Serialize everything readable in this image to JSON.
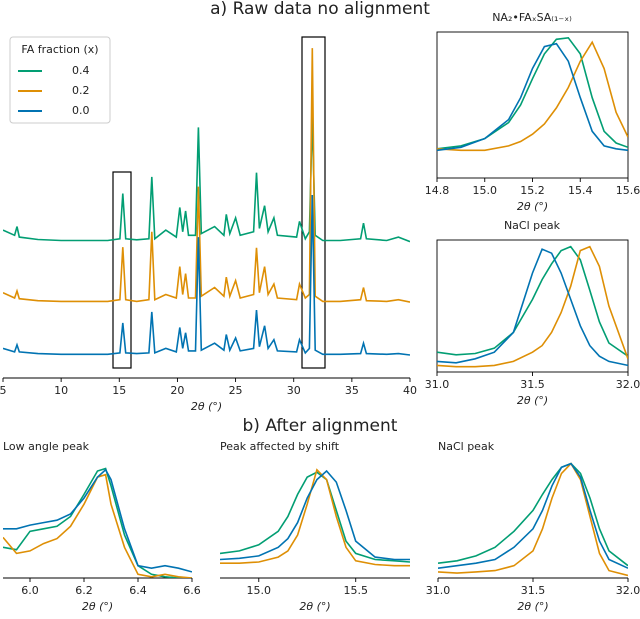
{
  "section_titles": [
    "a) Raw data no alignment",
    "b) After alignment"
  ],
  "chart_data": [
    {
      "type": "line",
      "xlabel": "2θ (°)",
      "frame": false,
      "legend_title": "FA fraction (x)",
      "legend": "upper left",
      "xlim": [
        5,
        40
      ],
      "ylim": [
        0,
        10
      ],
      "xticks": [
        5,
        10,
        15,
        20,
        25,
        30,
        35,
        40
      ],
      "x": [
        5,
        6.0,
        6.2,
        6.4,
        8,
        10,
        14,
        15.05,
        15.3,
        15.55,
        16.5,
        17.55,
        17.8,
        18.05,
        19.0,
        19.9,
        20.2,
        20.45,
        20.7,
        20.95,
        21.55,
        21.8,
        22.05,
        23.2,
        24.0,
        24.2,
        24.5,
        25.0,
        25.4,
        26.55,
        26.8,
        27.05,
        27.5,
        27.8,
        28.3,
        28.6,
        30.25,
        30.5,
        31.0,
        31.35,
        31.6,
        31.85,
        32.5,
        34,
        35.75,
        36.0,
        36.25,
        38,
        39,
        40
      ],
      "series": [
        {
          "name": "0.4",
          "color": "#029e73",
          "values": [
            4.25,
            4.1,
            4.35,
            4.05,
            3.98,
            3.95,
            3.95,
            4.0,
            5.3,
            4.0,
            3.97,
            4.0,
            5.78,
            4.0,
            4.25,
            4.05,
            4.9,
            4.2,
            4.8,
            4.1,
            4.1,
            7.2,
            4.15,
            4.35,
            4.1,
            4.7,
            4.15,
            4.6,
            4.1,
            4.2,
            5.9,
            4.3,
            4.95,
            4.2,
            4.6,
            4.1,
            4.05,
            4.5,
            4.0,
            4.2,
            7.5,
            4.1,
            3.95,
            3.95,
            4.0,
            4.45,
            4.0,
            3.95,
            4.05,
            3.92
          ]
        },
        {
          "name": "0.2",
          "color": "#de8f05",
          "values": [
            2.45,
            2.3,
            2.5,
            2.28,
            2.22,
            2.2,
            2.2,
            2.25,
            3.76,
            2.25,
            2.2,
            2.25,
            4.2,
            2.25,
            2.4,
            2.3,
            3.2,
            2.4,
            3.0,
            2.3,
            2.3,
            5.5,
            2.35,
            2.6,
            2.35,
            2.9,
            2.35,
            2.8,
            2.3,
            2.4,
            3.74,
            2.45,
            3.2,
            2.4,
            2.7,
            2.3,
            2.25,
            2.7,
            2.3,
            2.4,
            9.48,
            2.35,
            2.2,
            2.2,
            2.25,
            2.6,
            2.22,
            2.2,
            2.25,
            2.18
          ]
        },
        {
          "name": "0.0",
          "color": "#0173b2",
          "values": [
            0.85,
            0.75,
            0.95,
            0.75,
            0.7,
            0.68,
            0.68,
            0.72,
            1.58,
            0.72,
            0.7,
            0.72,
            1.9,
            0.72,
            0.85,
            0.75,
            1.45,
            0.85,
            1.3,
            0.78,
            0.78,
            4.05,
            0.8,
            1.0,
            0.8,
            1.25,
            0.8,
            1.15,
            0.78,
            0.85,
            1.95,
            0.9,
            1.5,
            0.85,
            1.1,
            0.78,
            0.75,
            1.1,
            0.72,
            0.85,
            5.26,
            0.8,
            0.68,
            0.68,
            0.7,
            1.0,
            0.7,
            0.68,
            0.7,
            0.66
          ]
        }
      ]
    },
    {
      "type": "line",
      "title": "NA₂•FAₓSA₍₁₋ₓ₎",
      "xlabel": "2θ (°)",
      "frame": true,
      "xlim": [
        14.8,
        15.6
      ],
      "ylim": [
        0,
        1
      ],
      "xticks": [
        14.8,
        {
          "value": 15,
          "label": "15.0"
        },
        15.2,
        15.4,
        15.6
      ],
      "x": [
        14.8,
        14.9,
        15.0,
        15.1,
        15.15,
        15.2,
        15.25,
        15.3,
        15.35,
        15.4,
        15.45,
        15.5,
        15.55,
        15.6
      ],
      "series": [
        {
          "color": "#029e73",
          "values": [
            0.2,
            0.22,
            0.27,
            0.38,
            0.5,
            0.68,
            0.85,
            0.95,
            0.96,
            0.85,
            0.55,
            0.32,
            0.24,
            0.21
          ]
        },
        {
          "color": "#de8f05",
          "values": [
            0.2,
            0.19,
            0.19,
            0.22,
            0.25,
            0.3,
            0.37,
            0.48,
            0.62,
            0.8,
            0.93,
            0.75,
            0.45,
            0.28
          ]
        },
        {
          "color": "#0173b2",
          "values": [
            0.19,
            0.21,
            0.27,
            0.4,
            0.55,
            0.75,
            0.9,
            0.92,
            0.8,
            0.55,
            0.32,
            0.22,
            0.2,
            0.19
          ]
        }
      ]
    },
    {
      "type": "line",
      "title": "NaCl peak",
      "xlabel": "2θ (°)",
      "frame": true,
      "xlim": [
        31,
        32
      ],
      "ylim": [
        0,
        1
      ],
      "xticks": [
        {
          "value": 31,
          "label": "31.0"
        },
        31.5,
        {
          "value": 32,
          "label": "32.0"
        }
      ],
      "x": [
        31.0,
        31.1,
        31.2,
        31.3,
        31.4,
        31.5,
        31.55,
        31.6,
        31.65,
        31.7,
        31.75,
        31.8,
        31.85,
        31.9,
        32.0
      ],
      "series": [
        {
          "color": "#029e73",
          "values": [
            0.15,
            0.13,
            0.14,
            0.18,
            0.3,
            0.55,
            0.7,
            0.82,
            0.92,
            0.95,
            0.85,
            0.62,
            0.38,
            0.22,
            0.12
          ]
        },
        {
          "color": "#de8f05",
          "values": [
            0.05,
            0.04,
            0.04,
            0.05,
            0.08,
            0.15,
            0.2,
            0.3,
            0.45,
            0.65,
            0.92,
            0.95,
            0.8,
            0.5,
            0.1
          ]
        },
        {
          "color": "#0173b2",
          "values": [
            0.08,
            0.07,
            0.1,
            0.15,
            0.3,
            0.75,
            0.93,
            0.9,
            0.75,
            0.55,
            0.35,
            0.2,
            0.12,
            0.08,
            0.05
          ]
        }
      ]
    },
    {
      "type": "line",
      "title": "Low angle peak",
      "xlabel": "2θ (°)",
      "frame": false,
      "xlim": [
        5.9,
        6.6
      ],
      "ylim": [
        0,
        1
      ],
      "xticks": [
        {
          "value": 6,
          "label": "6.0"
        },
        6.2,
        6.4,
        6.6
      ],
      "x": [
        5.9,
        5.95,
        6.0,
        6.05,
        6.1,
        6.15,
        6.2,
        6.25,
        6.28,
        6.3,
        6.35,
        6.4,
        6.45,
        6.5,
        6.55,
        6.6
      ],
      "series": [
        {
          "color": "#029e73",
          "values": [
            0.25,
            0.23,
            0.38,
            0.4,
            0.42,
            0.5,
            0.68,
            0.87,
            0.89,
            0.75,
            0.35,
            0.1,
            0.03,
            0.01,
            0.0,
            0.0
          ]
        },
        {
          "color": "#de8f05",
          "values": [
            0.33,
            0.2,
            0.22,
            0.28,
            0.32,
            0.42,
            0.6,
            0.82,
            0.84,
            0.6,
            0.25,
            0.03,
            0.01,
            0.03,
            0.01,
            0.0
          ]
        },
        {
          "color": "#0173b2",
          "values": [
            0.4,
            0.4,
            0.43,
            0.45,
            0.47,
            0.52,
            0.65,
            0.82,
            0.88,
            0.8,
            0.4,
            0.1,
            0.08,
            0.1,
            0.08,
            0.05
          ]
        }
      ]
    },
    {
      "type": "line",
      "title": "Peak affected by shift",
      "xlabel": "2θ (°)",
      "frame": false,
      "xlim": [
        14.8,
        15.78
      ],
      "ylim": [
        0,
        1
      ],
      "xticks": [
        {
          "value": 15,
          "label": "15.0"
        },
        15.5
      ],
      "x": [
        14.8,
        14.9,
        15.0,
        15.1,
        15.15,
        15.2,
        15.25,
        15.3,
        15.35,
        15.4,
        15.45,
        15.5,
        15.6,
        15.7,
        15.78
      ],
      "series": [
        {
          "color": "#029e73",
          "values": [
            0.2,
            0.22,
            0.27,
            0.38,
            0.5,
            0.68,
            0.82,
            0.86,
            0.8,
            0.55,
            0.3,
            0.2,
            0.15,
            0.14,
            0.13
          ]
        },
        {
          "color": "#de8f05",
          "values": [
            0.12,
            0.12,
            0.13,
            0.17,
            0.22,
            0.35,
            0.6,
            0.88,
            0.8,
            0.5,
            0.25,
            0.14,
            0.11,
            0.1,
            0.1
          ]
        },
        {
          "color": "#0173b2",
          "values": [
            0.15,
            0.16,
            0.18,
            0.25,
            0.32,
            0.45,
            0.65,
            0.8,
            0.87,
            0.78,
            0.55,
            0.3,
            0.17,
            0.15,
            0.15
          ]
        }
      ]
    },
    {
      "type": "line",
      "title": "NaCl peak",
      "xlabel": "2θ (°)",
      "frame": false,
      "xlim": [
        31,
        32
      ],
      "ylim": [
        0,
        1
      ],
      "xticks": [
        {
          "value": 31,
          "label": "31.0"
        },
        31.5,
        {
          "value": 32,
          "label": "32.0"
        }
      ],
      "x": [
        31.0,
        31.1,
        31.2,
        31.3,
        31.4,
        31.5,
        31.55,
        31.6,
        31.65,
        31.7,
        31.75,
        31.8,
        31.85,
        31.9,
        32.0
      ],
      "series": [
        {
          "color": "#029e73",
          "values": [
            0.12,
            0.14,
            0.18,
            0.25,
            0.38,
            0.55,
            0.68,
            0.8,
            0.9,
            0.93,
            0.85,
            0.65,
            0.4,
            0.22,
            0.1
          ]
        },
        {
          "color": "#de8f05",
          "values": [
            0.05,
            0.04,
            0.05,
            0.06,
            0.1,
            0.22,
            0.4,
            0.65,
            0.85,
            0.93,
            0.8,
            0.5,
            0.2,
            0.06,
            0.02
          ]
        },
        {
          "color": "#0173b2",
          "values": [
            0.08,
            0.1,
            0.12,
            0.15,
            0.25,
            0.4,
            0.55,
            0.75,
            0.9,
            0.93,
            0.82,
            0.55,
            0.3,
            0.15,
            0.08
          ]
        }
      ]
    }
  ]
}
